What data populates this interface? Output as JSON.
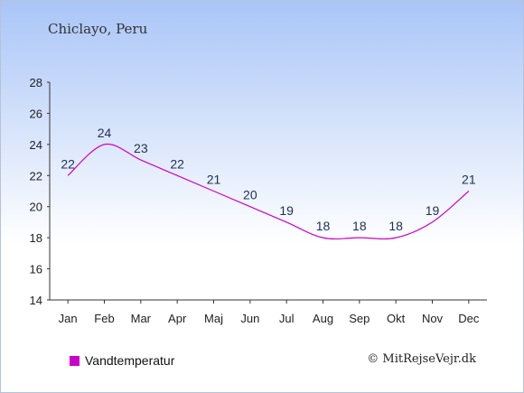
{
  "place": "Chiclayo, Peru",
  "credit": "© MitRejseVejr.dk",
  "colors": {
    "line": "#cc00cc",
    "axis": "#333333",
    "label": "#1c2f56"
  },
  "chart_data": {
    "type": "line",
    "categories": [
      "Jan",
      "Feb",
      "Mar",
      "Apr",
      "Maj",
      "Jun",
      "Jul",
      "Aug",
      "Sep",
      "Okt",
      "Nov",
      "Dec"
    ],
    "series": [
      {
        "name": "Vandtemperatur",
        "values": [
          22,
          24,
          23,
          22,
          21,
          20,
          19,
          18,
          18,
          18,
          19,
          21
        ]
      }
    ],
    "ylim": [
      14,
      28
    ],
    "yticks": [
      14,
      16,
      18,
      20,
      22,
      24,
      26,
      28
    ],
    "grid": false,
    "legend": "bottom-left"
  }
}
